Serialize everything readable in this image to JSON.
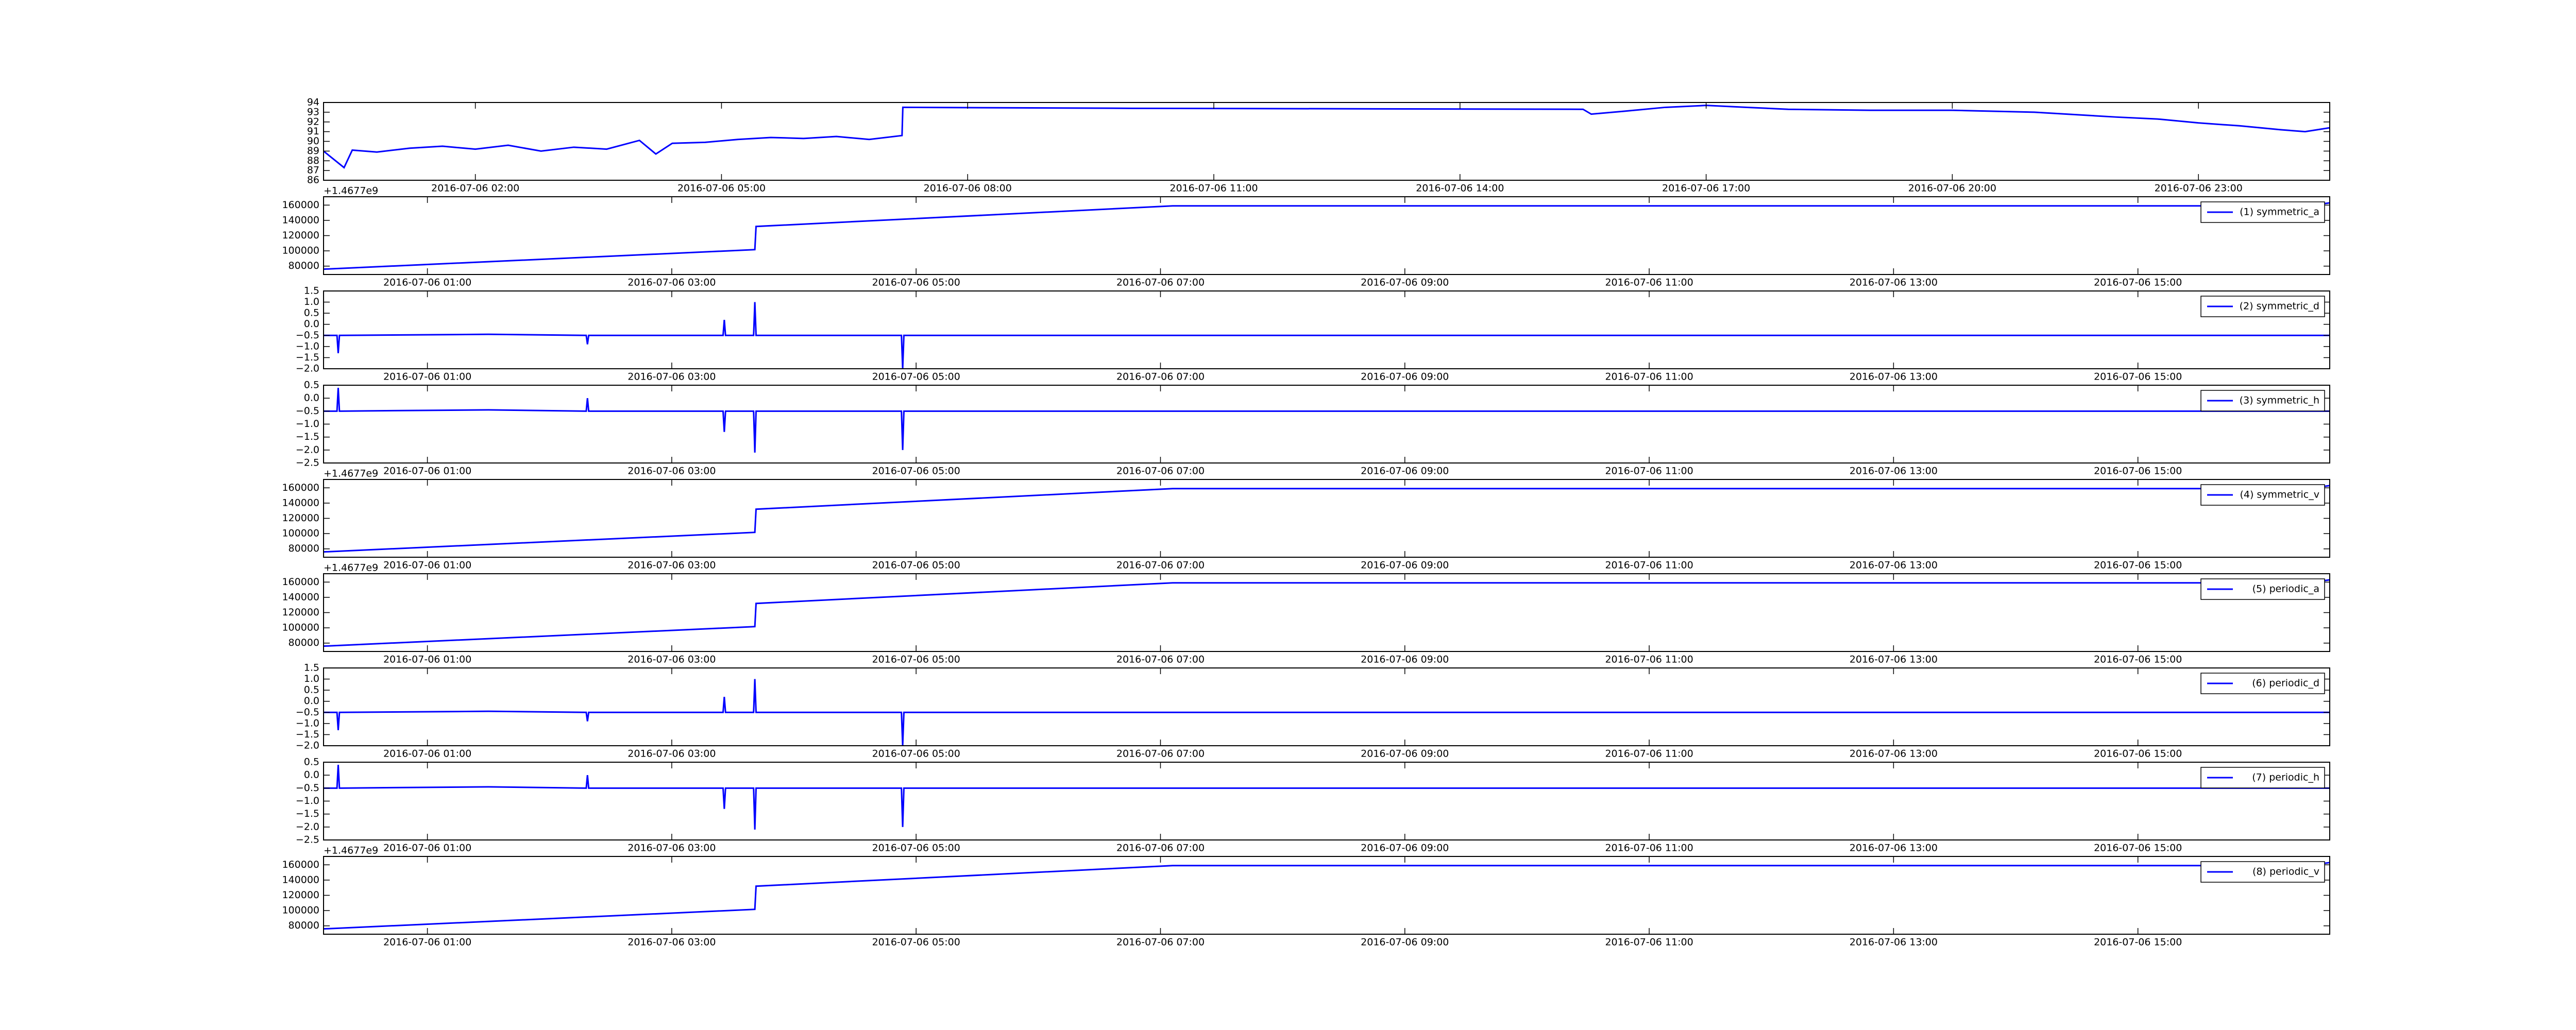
{
  "chart_data": [
    {
      "type": "line",
      "xlim": [
        0.15,
        24.6
      ],
      "ylim": [
        86,
        94
      ],
      "yticks": [
        86,
        87,
        88,
        89,
        90,
        91,
        92,
        93,
        94
      ],
      "xticks": [
        {
          "value": 2,
          "label": "2016-07-06 02:00"
        },
        {
          "value": 5,
          "label": "2016-07-06 05:00"
        },
        {
          "value": 8,
          "label": "2016-07-06 08:00"
        },
        {
          "value": 11,
          "label": "2016-07-06 11:00"
        },
        {
          "value": 14,
          "label": "2016-07-06 14:00"
        },
        {
          "value": 17,
          "label": "2016-07-06 17:00"
        },
        {
          "value": 20,
          "label": "2016-07-06 20:00"
        },
        {
          "value": 23,
          "label": "2016-07-06 23:00"
        }
      ],
      "x": [
        0.15,
        0.4,
        0.5,
        0.8,
        1.2,
        1.6,
        2.0,
        2.4,
        2.8,
        3.2,
        3.6,
        4.0,
        4.2,
        4.4,
        4.8,
        5.2,
        5.6,
        6.0,
        6.4,
        6.8,
        7.2,
        7.21,
        10,
        15.5,
        15.6,
        16.0,
        16.5,
        17.0,
        17.5,
        18,
        19,
        20,
        21,
        22,
        22.5,
        23,
        23.5,
        24,
        24.3,
        24.6
      ],
      "series": [
        {
          "color": "#0000ff",
          "values": [
            89.0,
            87.3,
            89.1,
            88.9,
            89.3,
            89.5,
            89.2,
            89.6,
            89.0,
            89.4,
            89.2,
            90.1,
            88.7,
            89.8,
            89.9,
            90.2,
            90.4,
            90.3,
            90.5,
            90.2,
            90.6,
            93.5,
            93.4,
            93.3,
            92.8,
            93.1,
            93.5,
            93.7,
            93.5,
            93.3,
            93.2,
            93.2,
            93.0,
            92.5,
            92.3,
            91.9,
            91.6,
            91.2,
            91.0,
            91.4
          ]
        }
      ]
    },
    {
      "type": "line",
      "legend": "upper right",
      "y_offset_label": "+1.4677e9",
      "xlim": [
        0.15,
        16.57
      ],
      "ylim": [
        69000,
        171000
      ],
      "yticks": [
        80000,
        100000,
        120000,
        140000,
        160000
      ],
      "xticks": [
        {
          "value": 1,
          "label": "2016-07-06 01:00"
        },
        {
          "value": 3,
          "label": "2016-07-06 03:00"
        },
        {
          "value": 5,
          "label": "2016-07-06 05:00"
        },
        {
          "value": 7,
          "label": "2016-07-06 07:00"
        },
        {
          "value": 9,
          "label": "2016-07-06 09:00"
        },
        {
          "value": 11,
          "label": "2016-07-06 11:00"
        },
        {
          "value": 13,
          "label": "2016-07-06 13:00"
        },
        {
          "value": 15,
          "label": "2016-07-06 15:00"
        }
      ],
      "x": [
        0.15,
        3.68,
        3.69,
        7.1,
        16.4,
        16.57
      ],
      "series": [
        {
          "name": "(1) symmetric_a",
          "color": "#0000ff",
          "values": [
            76000,
            101600,
            132000,
            159000,
            159000,
            163000
          ]
        }
      ]
    },
    {
      "type": "line",
      "legend": "upper right",
      "xlim": [
        0.15,
        16.57
      ],
      "ylim": [
        -2.0,
        1.5
      ],
      "yticks": [
        1.5,
        {
          "value": 1,
          "label": "1.0"
        },
        0.5,
        {
          "value": 0,
          "label": "0.0"
        },
        {
          "value": -0.5,
          "label": "−0.5"
        },
        {
          "value": -1,
          "label": "−1.0"
        },
        {
          "value": -1.5,
          "label": "−1.5"
        },
        {
          "value": -2,
          "label": "−2.0"
        }
      ],
      "xticks": [
        {
          "value": 1,
          "label": "2016-07-06 01:00"
        },
        {
          "value": 3,
          "label": "2016-07-06 03:00"
        },
        {
          "value": 5,
          "label": "2016-07-06 05:00"
        },
        {
          "value": 7,
          "label": "2016-07-06 07:00"
        },
        {
          "value": 9,
          "label": "2016-07-06 09:00"
        },
        {
          "value": 11,
          "label": "2016-07-06 11:00"
        },
        {
          "value": 13,
          "label": "2016-07-06 13:00"
        },
        {
          "value": 15,
          "label": "2016-07-06 15:00"
        }
      ],
      "x": [
        0.15,
        0.26,
        0.27,
        0.28,
        1.5,
        2.3,
        2.31,
        2.32,
        3.42,
        3.43,
        3.44,
        3.67,
        3.68,
        3.69,
        4.88,
        4.89,
        4.9,
        7.1,
        15.4,
        16.57
      ],
      "series": [
        {
          "name": "(2) symmetric_d",
          "color": "#0000ff",
          "values": [
            -0.5,
            -0.5,
            -1.3,
            -0.5,
            -0.45,
            -0.5,
            -0.9,
            -0.5,
            -0.5,
            0.2,
            -0.5,
            -0.5,
            1.0,
            -0.5,
            -0.5,
            -2.0,
            -0.5,
            -0.5,
            -0.5,
            -0.5
          ]
        }
      ]
    },
    {
      "type": "line",
      "legend": "upper right",
      "xlim": [
        0.15,
        16.57
      ],
      "ylim": [
        -2.5,
        0.5
      ],
      "yticks": [
        0.5,
        {
          "value": 0,
          "label": "0.0"
        },
        {
          "value": -0.5,
          "label": "−0.5"
        },
        {
          "value": -1,
          "label": "−1.0"
        },
        {
          "value": -1.5,
          "label": "−1.5"
        },
        {
          "value": -2,
          "label": "−2.0"
        },
        {
          "value": -2.5,
          "label": "−2.5"
        }
      ],
      "xticks": [
        {
          "value": 1,
          "label": "2016-07-06 01:00"
        },
        {
          "value": 3,
          "label": "2016-07-06 03:00"
        },
        {
          "value": 5,
          "label": "2016-07-06 05:00"
        },
        {
          "value": 7,
          "label": "2016-07-06 07:00"
        },
        {
          "value": 9,
          "label": "2016-07-06 09:00"
        },
        {
          "value": 11,
          "label": "2016-07-06 11:00"
        },
        {
          "value": 13,
          "label": "2016-07-06 13:00"
        },
        {
          "value": 15,
          "label": "2016-07-06 15:00"
        }
      ],
      "x": [
        0.15,
        0.26,
        0.27,
        0.28,
        1.5,
        2.3,
        2.31,
        2.32,
        3.42,
        3.43,
        3.44,
        3.67,
        3.68,
        3.69,
        4.88,
        4.89,
        4.9,
        7.1,
        15.4,
        16.57
      ],
      "series": [
        {
          "name": "(3) symmetric_h",
          "color": "#0000ff",
          "values": [
            -0.5,
            -0.5,
            0.4,
            -0.5,
            -0.45,
            -0.5,
            0.0,
            -0.5,
            -0.5,
            -1.3,
            -0.5,
            -0.5,
            -2.1,
            -0.5,
            -0.5,
            -2.0,
            -0.5,
            -0.5,
            -0.5,
            -0.5
          ]
        }
      ]
    },
    {
      "type": "line",
      "legend": "upper right",
      "y_offset_label": "+1.4677e9",
      "xlim": [
        0.15,
        16.57
      ],
      "ylim": [
        69000,
        171000
      ],
      "yticks": [
        80000,
        100000,
        120000,
        140000,
        160000
      ],
      "xticks": [
        {
          "value": 1,
          "label": "2016-07-06 01:00"
        },
        {
          "value": 3,
          "label": "2016-07-06 03:00"
        },
        {
          "value": 5,
          "label": "2016-07-06 05:00"
        },
        {
          "value": 7,
          "label": "2016-07-06 07:00"
        },
        {
          "value": 9,
          "label": "2016-07-06 09:00"
        },
        {
          "value": 11,
          "label": "2016-07-06 11:00"
        },
        {
          "value": 13,
          "label": "2016-07-06 13:00"
        },
        {
          "value": 15,
          "label": "2016-07-06 15:00"
        }
      ],
      "x": [
        0.15,
        3.68,
        3.69,
        7.1,
        16.4,
        16.57
      ],
      "series": [
        {
          "name": "(4) symmetric_v",
          "color": "#0000ff",
          "values": [
            76000,
            101600,
            132000,
            159000,
            159000,
            163000
          ]
        }
      ]
    },
    {
      "type": "line",
      "legend": "upper right",
      "y_offset_label": "+1.4677e9",
      "xlim": [
        0.15,
        16.57
      ],
      "ylim": [
        69000,
        171000
      ],
      "yticks": [
        80000,
        100000,
        120000,
        140000,
        160000
      ],
      "xticks": [
        {
          "value": 1,
          "label": "2016-07-06 01:00"
        },
        {
          "value": 3,
          "label": "2016-07-06 03:00"
        },
        {
          "value": 5,
          "label": "2016-07-06 05:00"
        },
        {
          "value": 7,
          "label": "2016-07-06 07:00"
        },
        {
          "value": 9,
          "label": "2016-07-06 09:00"
        },
        {
          "value": 11,
          "label": "2016-07-06 11:00"
        },
        {
          "value": 13,
          "label": "2016-07-06 13:00"
        },
        {
          "value": 15,
          "label": "2016-07-06 15:00"
        }
      ],
      "x": [
        0.15,
        3.68,
        3.69,
        7.1,
        16.4,
        16.57
      ],
      "series": [
        {
          "name": "(5) periodic_a",
          "color": "#0000ff",
          "values": [
            76000,
            101600,
            132000,
            159000,
            159000,
            163000
          ]
        }
      ]
    },
    {
      "type": "line",
      "legend": "upper right",
      "xlim": [
        0.15,
        16.57
      ],
      "ylim": [
        -2.0,
        1.5
      ],
      "yticks": [
        1.5,
        {
          "value": 1,
          "label": "1.0"
        },
        0.5,
        {
          "value": 0,
          "label": "0.0"
        },
        {
          "value": -0.5,
          "label": "−0.5"
        },
        {
          "value": -1,
          "label": "−1.0"
        },
        {
          "value": -1.5,
          "label": "−1.5"
        },
        {
          "value": -2,
          "label": "−2.0"
        }
      ],
      "xticks": [
        {
          "value": 1,
          "label": "2016-07-06 01:00"
        },
        {
          "value": 3,
          "label": "2016-07-06 03:00"
        },
        {
          "value": 5,
          "label": "2016-07-06 05:00"
        },
        {
          "value": 7,
          "label": "2016-07-06 07:00"
        },
        {
          "value": 9,
          "label": "2016-07-06 09:00"
        },
        {
          "value": 11,
          "label": "2016-07-06 11:00"
        },
        {
          "value": 13,
          "label": "2016-07-06 13:00"
        },
        {
          "value": 15,
          "label": "2016-07-06 15:00"
        }
      ],
      "x": [
        0.15,
        0.26,
        0.27,
        0.28,
        1.5,
        2.3,
        2.31,
        2.32,
        3.42,
        3.43,
        3.44,
        3.67,
        3.68,
        3.69,
        4.88,
        4.89,
        4.9,
        7.1,
        15.4,
        16.57
      ],
      "series": [
        {
          "name": "(6) periodic_d",
          "color": "#0000ff",
          "values": [
            -0.5,
            -0.5,
            -1.3,
            -0.5,
            -0.45,
            -0.5,
            -0.9,
            -0.5,
            -0.5,
            0.2,
            -0.5,
            -0.5,
            1.0,
            -0.5,
            -0.5,
            -2.0,
            -0.5,
            -0.5,
            -0.5,
            -0.5
          ]
        }
      ]
    },
    {
      "type": "line",
      "legend": "upper right",
      "xlim": [
        0.15,
        16.57
      ],
      "ylim": [
        -2.5,
        0.5
      ],
      "yticks": [
        0.5,
        {
          "value": 0,
          "label": "0.0"
        },
        {
          "value": -0.5,
          "label": "−0.5"
        },
        {
          "value": -1,
          "label": "−1.0"
        },
        {
          "value": -1.5,
          "label": "−1.5"
        },
        {
          "value": -2,
          "label": "−2.0"
        },
        {
          "value": -2.5,
          "label": "−2.5"
        }
      ],
      "xticks": [
        {
          "value": 1,
          "label": "2016-07-06 01:00"
        },
        {
          "value": 3,
          "label": "2016-07-06 03:00"
        },
        {
          "value": 5,
          "label": "2016-07-06 05:00"
        },
        {
          "value": 7,
          "label": "2016-07-06 07:00"
        },
        {
          "value": 9,
          "label": "2016-07-06 09:00"
        },
        {
          "value": 11,
          "label": "2016-07-06 11:00"
        },
        {
          "value": 13,
          "label": "2016-07-06 13:00"
        },
        {
          "value": 15,
          "label": "2016-07-06 15:00"
        }
      ],
      "x": [
        0.15,
        0.26,
        0.27,
        0.28,
        1.5,
        2.3,
        2.31,
        2.32,
        3.42,
        3.43,
        3.44,
        3.67,
        3.68,
        3.69,
        4.88,
        4.89,
        4.9,
        7.1,
        15.4,
        16.57
      ],
      "series": [
        {
          "name": "(7) periodic_h",
          "color": "#0000ff",
          "values": [
            -0.5,
            -0.5,
            0.4,
            -0.5,
            -0.45,
            -0.5,
            0.0,
            -0.5,
            -0.5,
            -1.3,
            -0.5,
            -0.5,
            -2.1,
            -0.5,
            -0.5,
            -2.0,
            -0.5,
            -0.5,
            -0.5,
            -0.5
          ]
        }
      ]
    },
    {
      "type": "line",
      "legend": "upper right",
      "y_offset_label": "+1.4677e9",
      "xlim": [
        0.15,
        16.57
      ],
      "ylim": [
        69000,
        171000
      ],
      "yticks": [
        80000,
        100000,
        120000,
        140000,
        160000
      ],
      "xticks": [
        {
          "value": 1,
          "label": "2016-07-06 01:00"
        },
        {
          "value": 3,
          "label": "2016-07-06 03:00"
        },
        {
          "value": 5,
          "label": "2016-07-06 05:00"
        },
        {
          "value": 7,
          "label": "2016-07-06 07:00"
        },
        {
          "value": 9,
          "label": "2016-07-06 09:00"
        },
        {
          "value": 11,
          "label": "2016-07-06 11:00"
        },
        {
          "value": 13,
          "label": "2016-07-06 13:00"
        },
        {
          "value": 15,
          "label": "2016-07-06 15:00"
        }
      ],
      "x": [
        0.15,
        3.68,
        3.69,
        7.1,
        16.4,
        16.57
      ],
      "series": [
        {
          "name": "(8) periodic_v",
          "color": "#0000ff",
          "values": [
            76000,
            101600,
            132000,
            159000,
            159000,
            163000
          ]
        }
      ]
    }
  ]
}
